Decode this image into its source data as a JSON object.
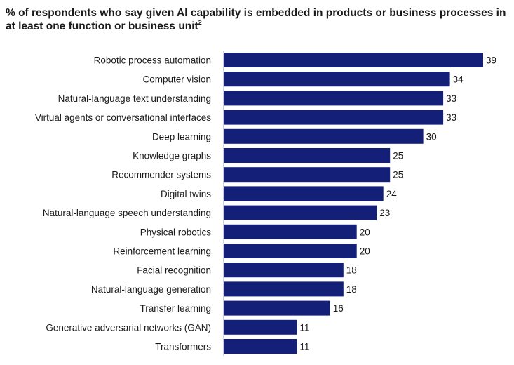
{
  "chart_data": {
    "type": "bar",
    "orientation": "horizontal",
    "title": "% of respondents who say given AI capability is embedded in products or business processes in at least one function or business unit",
    "title_footnote": "2",
    "categories": [
      "Robotic process automation",
      "Computer vision",
      "Natural-language text understanding",
      "Virtual agents or conversational interfaces",
      "Deep learning",
      "Knowledge graphs",
      "Recommender systems",
      "Digital twins",
      "Natural-language speech understanding",
      "Physical robotics",
      "Reinforcement learning",
      "Facial recognition",
      "Natural-language generation",
      "Transfer learning",
      "Generative adversarial networks (GAN)",
      "Transformers"
    ],
    "values": [
      39,
      34,
      33,
      33,
      30,
      25,
      25,
      24,
      23,
      20,
      20,
      18,
      18,
      16,
      11,
      11
    ],
    "bar_color": "#141f78",
    "xlim": [
      0,
      39
    ],
    "grid": false,
    "legend": "none"
  }
}
